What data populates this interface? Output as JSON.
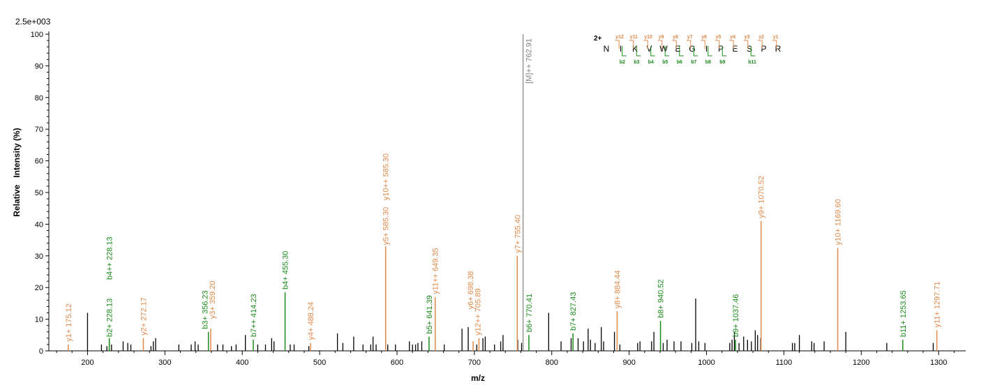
{
  "chart_data": {
    "type": "bar",
    "scale_label": "2.5e+003",
    "xlabel": "m/z",
    "ylabel": "Relative   Intensity (%)",
    "xlim": [
      150,
      1335
    ],
    "ylim": [
      0,
      100
    ],
    "x_ticks": [
      200,
      300,
      400,
      500,
      600,
      700,
      800,
      900,
      1000,
      1100,
      1200,
      1300
    ],
    "y_ticks": [
      0,
      10,
      20,
      30,
      40,
      50,
      60,
      70,
      80,
      90,
      100
    ],
    "colors": {
      "y_ion": "#e08a4c",
      "b_ion": "#1a8a1a",
      "precursor": "#808080",
      "unassigned": "#000000",
      "charge": "#00008b"
    },
    "sequence": {
      "charge": "2+",
      "residues": [
        "N",
        "I",
        "K",
        "V",
        "W",
        "E",
        "G",
        "I",
        "P",
        "E",
        "S",
        "P",
        "R"
      ],
      "y_ions": [
        "y12",
        "y11",
        "y10",
        "y9",
        "y8",
        "y7",
        "y6",
        "y5",
        "y4",
        "y3",
        "y2",
        "y1"
      ],
      "b_ions": [
        "b2",
        "b3",
        "b4",
        "b5",
        "b6",
        "b7",
        "b8",
        "b9",
        "b11"
      ]
    },
    "unassigned_peaks": [
      [
        200,
        12
      ],
      [
        218,
        2
      ],
      [
        225,
        1.5
      ],
      [
        231,
        2
      ],
      [
        246,
        3
      ],
      [
        252,
        2.5
      ],
      [
        256,
        2
      ],
      [
        282,
        1.5
      ],
      [
        285,
        3
      ],
      [
        288,
        4
      ],
      [
        318,
        2
      ],
      [
        334,
        2
      ],
      [
        339,
        3
      ],
      [
        343,
        2
      ],
      [
        368,
        2
      ],
      [
        375,
        2
      ],
      [
        386,
        1.5
      ],
      [
        392,
        2
      ],
      [
        404,
        5
      ],
      [
        420,
        2
      ],
      [
        430,
        2
      ],
      [
        438,
        4
      ],
      [
        441,
        3
      ],
      [
        462,
        2
      ],
      [
        467,
        2
      ],
      [
        486,
        1.5
      ],
      [
        523,
        5.5
      ],
      [
        530,
        2.5
      ],
      [
        544,
        4.5
      ],
      [
        556,
        2
      ],
      [
        566,
        2
      ],
      [
        569,
        4.5
      ],
      [
        573,
        2
      ],
      [
        588,
        2
      ],
      [
        598,
        2
      ],
      [
        616,
        3
      ],
      [
        620,
        2
      ],
      [
        624,
        2
      ],
      [
        627,
        2.5
      ],
      [
        632,
        3
      ],
      [
        661,
        2
      ],
      [
        684,
        7
      ],
      [
        692,
        7.5
      ],
      [
        703,
        2
      ],
      [
        711,
        4
      ],
      [
        714,
        4.5
      ],
      [
        726,
        2
      ],
      [
        734,
        3
      ],
      [
        737,
        5
      ],
      [
        756,
        3.5
      ],
      [
        761,
        2.5
      ],
      [
        796,
        12
      ],
      [
        812,
        3
      ],
      [
        825,
        4
      ],
      [
        834,
        4
      ],
      [
        841,
        3
      ],
      [
        847,
        7
      ],
      [
        850,
        3.5
      ],
      [
        856,
        2.5
      ],
      [
        864,
        7.5
      ],
      [
        867,
        3
      ],
      [
        881,
        6
      ],
      [
        888,
        2
      ],
      [
        911,
        2.5
      ],
      [
        914,
        3
      ],
      [
        929,
        3
      ],
      [
        932,
        6
      ],
      [
        944,
        2.5
      ],
      [
        949,
        3.5
      ],
      [
        958,
        3
      ],
      [
        967,
        3
      ],
      [
        981,
        2.5
      ],
      [
        986,
        16.5
      ],
      [
        990,
        3
      ],
      [
        998,
        2.5
      ],
      [
        1030,
        2.5
      ],
      [
        1033,
        3.5
      ],
      [
        1036,
        6
      ],
      [
        1042,
        2.5
      ],
      [
        1048,
        4.5
      ],
      [
        1053,
        3.5
      ],
      [
        1058,
        3
      ],
      [
        1063,
        6.5
      ],
      [
        1066,
        5
      ],
      [
        1070,
        4
      ],
      [
        1111,
        2.5
      ],
      [
        1114,
        2.5
      ],
      [
        1120,
        5
      ],
      [
        1136,
        3
      ],
      [
        1139,
        2.5
      ],
      [
        1152,
        3
      ],
      [
        1180,
        6
      ],
      [
        1233,
        2.5
      ],
      [
        1293,
        2.5
      ]
    ],
    "labeled_peaks": [
      {
        "x": 175.12,
        "y": 2,
        "ion": "y",
        "label": "y1+ 175.12"
      },
      {
        "x": 228.13,
        "y": 3.5,
        "ion": "b",
        "label": "b2+ 228.13"
      },
      {
        "x": 228.13,
        "y": 4,
        "ion": "b",
        "label": "b4++ 228.13"
      },
      {
        "x": 272.17,
        "y": 4,
        "ion": "y",
        "label": "y2+ 272.17"
      },
      {
        "x": 356.23,
        "y": 6,
        "ion": "b",
        "label": "b3+ 356.23"
      },
      {
        "x": 359.2,
        "y": 7,
        "ion": "y",
        "label": "y3+ 359.20"
      },
      {
        "x": 414.23,
        "y": 3.5,
        "ion": "b",
        "label": "b7++ 414.23"
      },
      {
        "x": 455.3,
        "y": 18.5,
        "ion": "b",
        "label": "b4+ 455.30"
      },
      {
        "x": 488.24,
        "y": 2.5,
        "ion": "y",
        "label": "y4+ 488.24"
      },
      {
        "x": 585.3,
        "y": 32.5,
        "ion": "y",
        "label": "y5+ 585.30"
      },
      {
        "x": 585.3,
        "y": 33,
        "ion": "y",
        "label": "y10++ 585.30"
      },
      {
        "x": 641.39,
        "y": 4.5,
        "ion": "b",
        "label": "b5+ 641.39"
      },
      {
        "x": 649.35,
        "y": 17,
        "ion": "y",
        "label": "y11++ 649.35"
      },
      {
        "x": 698.38,
        "y": 3,
        "ion": "y",
        "label": "y6+ 698.38"
      },
      {
        "x": 705.89,
        "y": 4,
        "ion": "y",
        "label": "y12++ 705.89"
      },
      {
        "x": 755.4,
        "y": 30,
        "ion": "y",
        "label": "y7+ 755.40"
      },
      {
        "x": 762.91,
        "y": 100,
        "ion": "precursor",
        "label": "[M]++ 762.91"
      },
      {
        "x": 770.41,
        "y": 5,
        "ion": "b",
        "label": "b6+ 770.41"
      },
      {
        "x": 827.43,
        "y": 5.5,
        "ion": "b",
        "label": "b7+ 827.43"
      },
      {
        "x": 884.44,
        "y": 12.5,
        "ion": "y",
        "label": "y8+ 884.44"
      },
      {
        "x": 940.52,
        "y": 9.5,
        "ion": "b",
        "label": "b8+ 940.52"
      },
      {
        "x": 1037.46,
        "y": 3.5,
        "ion": "b",
        "label": "b9+ 1037.46"
      },
      {
        "x": 1070.52,
        "y": 41,
        "ion": "y",
        "label": "y9+ 1070.52"
      },
      {
        "x": 1169.6,
        "y": 32.5,
        "ion": "y",
        "label": "y10+ 1169.60"
      },
      {
        "x": 1253.65,
        "y": 3.5,
        "ion": "b",
        "label": "b11+ 1253.65"
      },
      {
        "x": 1297.71,
        "y": 6.5,
        "ion": "y",
        "label": "y11+ 1297.71"
      }
    ]
  }
}
